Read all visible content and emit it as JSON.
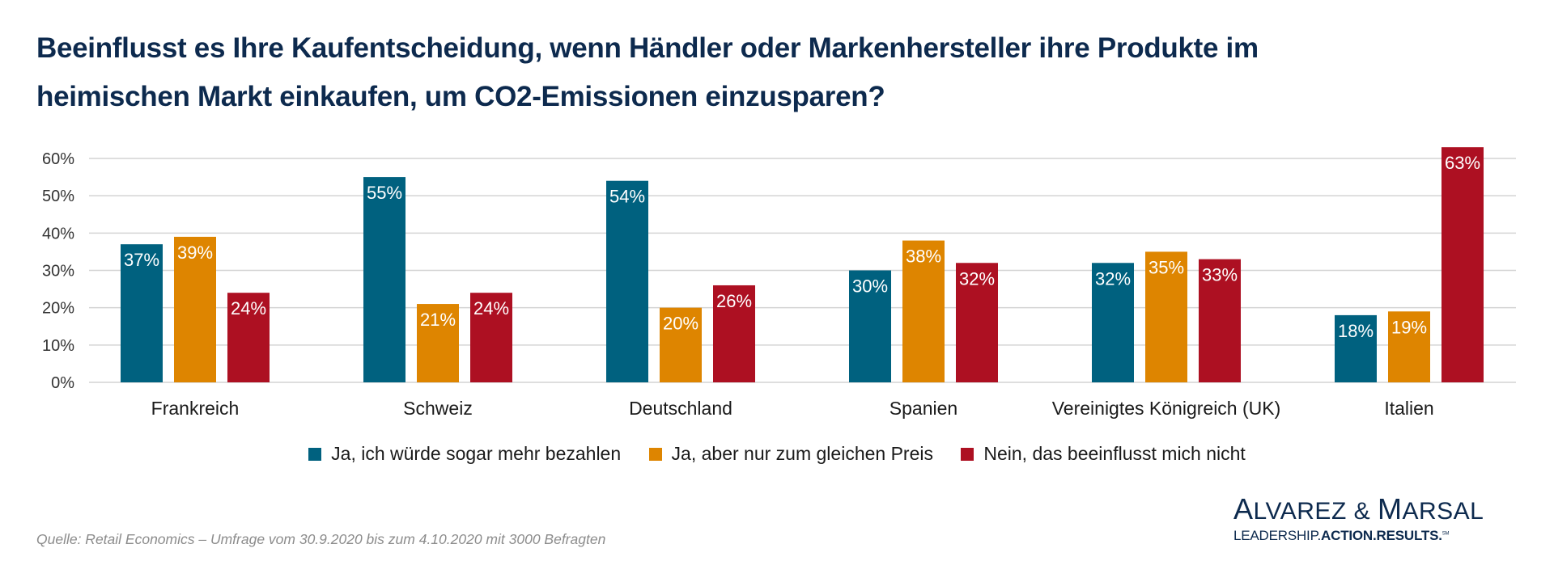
{
  "title_lines": [
    "Beeinflusst es Ihre Kaufentscheidung, wenn Händler oder Markenhersteller ihre Produkte im",
    "heimischen Markt einkaufen, um CO2-Emissionen einzusparen?"
  ],
  "source": "Quelle: Retail Economics – Umfrage vom 30.9.2020 bis zum 4.10.2020 mit 3000 Befragten",
  "logo": {
    "name_first_cap": "A",
    "name_first_rest": "LVAREZ & ",
    "name_second_cap": "M",
    "name_second_rest": "ARSAL",
    "tagline_light": "LEADERSHIP.",
    "tagline_bold": "ACTION.RESULTS.",
    "tagline_mark": "SM"
  },
  "chart_data": {
    "type": "bar",
    "title": "Beeinflusst es Ihre Kaufentscheidung, wenn Händler oder Markenhersteller ihre Produkte im heimischen Markt einkaufen, um CO2-Emissionen einzusparen?",
    "xlabel": "",
    "ylabel": "",
    "ylim": [
      0,
      60
    ],
    "yticks": [
      0,
      10,
      20,
      30,
      40,
      50,
      60
    ],
    "ytick_labels": [
      "0%",
      "10%",
      "20%",
      "30%",
      "40%",
      "50%",
      "60%"
    ],
    "grid": true,
    "legend_position": "bottom",
    "categories": [
      "Frankreich",
      "Schweiz",
      "Deutschland",
      "Spanien",
      "Vereinigtes Königreich (UK)",
      "Italien"
    ],
    "series": [
      {
        "name": "Ja, ich würde sogar mehr bezahlen",
        "color": "#00617f",
        "values": [
          37,
          55,
          54,
          30,
          32,
          18
        ]
      },
      {
        "name": "Ja, aber nur zum gleichen Preis",
        "color": "#de8500",
        "values": [
          39,
          21,
          20,
          38,
          35,
          19
        ]
      },
      {
        "name": "Nein, das beeinflusst mich nicht",
        "color": "#ad1022",
        "values": [
          24,
          24,
          26,
          32,
          33,
          63
        ]
      }
    ],
    "value_suffix": "%"
  }
}
